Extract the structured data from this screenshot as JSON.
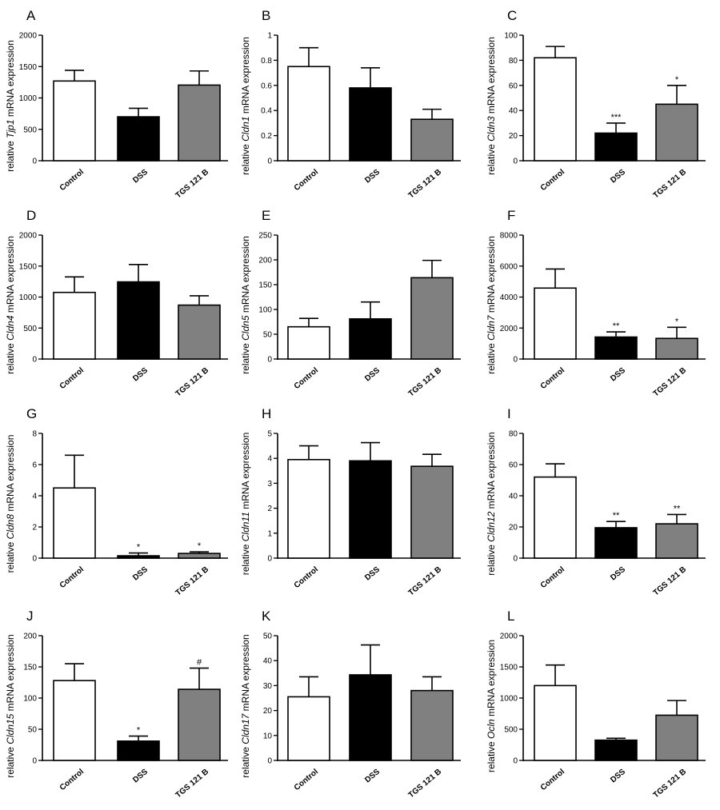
{
  "figure": {
    "colors": {
      "control": "#ffffff",
      "dss": "#000000",
      "tgs": "#808080",
      "axis": "#000000"
    }
  },
  "chart_data": [
    {
      "letter": "A",
      "type": "bar",
      "gene": "Tjp1",
      "ylabel": "relative Tjp1 mRNA expression",
      "categories": [
        "Control",
        "DSS",
        "TGS 121 B"
      ],
      "values": [
        1270,
        700,
        1205
      ],
      "errors": [
        170,
        135,
        225
      ],
      "significance": [
        "",
        "",
        ""
      ],
      "ylim": [
        0,
        2000
      ],
      "yticks": [
        0,
        500,
        1000,
        1500,
        2000
      ]
    },
    {
      "letter": "B",
      "type": "bar",
      "gene": "Cldn1",
      "ylabel": "relative Cldn1 mRNA expression",
      "categories": [
        "Control",
        "DSS",
        "TGS 121 B"
      ],
      "values": [
        0.75,
        0.58,
        0.33
      ],
      "errors": [
        0.15,
        0.16,
        0.08
      ],
      "significance": [
        "",
        "",
        ""
      ],
      "ylim": [
        0,
        1.0
      ],
      "yticks": [
        0,
        0.2,
        0.4,
        0.6,
        0.8,
        1.0
      ]
    },
    {
      "letter": "C",
      "type": "bar",
      "gene": "Cldn3",
      "ylabel": "relative Cldn3 mRNA expression",
      "categories": [
        "Control",
        "DSS",
        "TGS 121 B"
      ],
      "values": [
        82,
        22,
        45
      ],
      "errors": [
        9,
        8,
        15
      ],
      "significance": [
        "",
        "***",
        "*"
      ],
      "ylim": [
        0,
        100
      ],
      "yticks": [
        0,
        20,
        40,
        60,
        80,
        100
      ]
    },
    {
      "letter": "D",
      "type": "bar",
      "gene": "Cldn4",
      "ylabel": "relative Cldn4 mRNA expression",
      "categories": [
        "Control",
        "DSS",
        "TGS 121 B"
      ],
      "values": [
        1075,
        1245,
        870
      ],
      "errors": [
        250,
        280,
        150
      ],
      "significance": [
        "",
        "",
        ""
      ],
      "ylim": [
        0,
        2000
      ],
      "yticks": [
        0,
        500,
        1000,
        1500,
        2000
      ]
    },
    {
      "letter": "E",
      "type": "bar",
      "gene": "Cldn5",
      "ylabel": "relative Cldn5 mRNA expression",
      "categories": [
        "Control",
        "DSS",
        "TGS 121 B"
      ],
      "values": [
        65,
        81,
        164
      ],
      "errors": [
        17,
        34,
        35
      ],
      "significance": [
        "",
        "",
        ""
      ],
      "ylim": [
        0,
        250
      ],
      "yticks": [
        0,
        50,
        100,
        150,
        200,
        250
      ]
    },
    {
      "letter": "F",
      "type": "bar",
      "gene": "Cldn7",
      "ylabel": "relative Cldn7 mRNA expression",
      "categories": [
        "Control",
        "DSS",
        "TGS 121 B"
      ],
      "values": [
        4580,
        1420,
        1330
      ],
      "errors": [
        1230,
        330,
        720
      ],
      "significance": [
        "",
        "**",
        "*"
      ],
      "ylim": [
        0,
        8000
      ],
      "yticks": [
        0,
        2000,
        4000,
        6000,
        8000
      ]
    },
    {
      "letter": "G",
      "type": "bar",
      "gene": "Cldn8",
      "ylabel": "relative Cldn8 mRNA expression",
      "categories": [
        "Control",
        "DSS",
        "TGS 121 B"
      ],
      "values": [
        4.5,
        0.15,
        0.3
      ],
      "errors": [
        2.1,
        0.18,
        0.1
      ],
      "significance": [
        "",
        "*",
        "*"
      ],
      "ylim": [
        0,
        8
      ],
      "yticks": [
        0,
        2,
        4,
        6,
        8
      ]
    },
    {
      "letter": "H",
      "type": "bar",
      "gene": "Cldn11",
      "ylabel": "relative Cldn11 mRNA expression",
      "categories": [
        "Control",
        "DSS",
        "TGS 121 B"
      ],
      "values": [
        3.95,
        3.9,
        3.68
      ],
      "errors": [
        0.55,
        0.73,
        0.48
      ],
      "significance": [
        "",
        "",
        ""
      ],
      "ylim": [
        0,
        5
      ],
      "yticks": [
        0,
        1,
        2,
        3,
        4,
        5
      ]
    },
    {
      "letter": "I",
      "type": "bar",
      "gene": "Cldn12",
      "ylabel": "relative Cldn12 mRNA expression",
      "categories": [
        "Control",
        "DSS",
        "TGS 121 B"
      ],
      "values": [
        52,
        19.5,
        22
      ],
      "errors": [
        8.5,
        4,
        6
      ],
      "significance": [
        "",
        "**",
        "**"
      ],
      "ylim": [
        0,
        80
      ],
      "yticks": [
        0,
        20,
        40,
        60,
        80
      ]
    },
    {
      "letter": "J",
      "type": "bar",
      "gene": "Cldn15",
      "ylabel": "relative Cldn15 mRNA expression",
      "categories": [
        "Control",
        "DSS",
        "TGS 121 B"
      ],
      "values": [
        128,
        31,
        114
      ],
      "errors": [
        27,
        8,
        34
      ],
      "significance": [
        "",
        "*",
        "#"
      ],
      "ylim": [
        0,
        200
      ],
      "yticks": [
        0,
        50,
        100,
        150,
        200
      ]
    },
    {
      "letter": "K",
      "type": "bar",
      "gene": "Cldn17",
      "ylabel": "relative Cldn17 mRNA expression",
      "categories": [
        "Control",
        "DSS",
        "TGS 121 B"
      ],
      "values": [
        25.5,
        34.3,
        28
      ],
      "errors": [
        8,
        12,
        5.5
      ],
      "significance": [
        "",
        "",
        ""
      ],
      "ylim": [
        0,
        50
      ],
      "yticks": [
        0,
        10,
        20,
        30,
        40,
        50
      ]
    },
    {
      "letter": "L",
      "type": "bar",
      "gene": "Ocln",
      "ylabel": "relative Ocln mRNA expression",
      "categories": [
        "Control",
        "DSS",
        "TGS 121 B"
      ],
      "values": [
        1200,
        325,
        725
      ],
      "errors": [
        330,
        30,
        235
      ],
      "significance": [
        "",
        "",
        ""
      ],
      "ylim": [
        0,
        2000
      ],
      "yticks": [
        0,
        500,
        1000,
        1500,
        2000
      ]
    }
  ]
}
